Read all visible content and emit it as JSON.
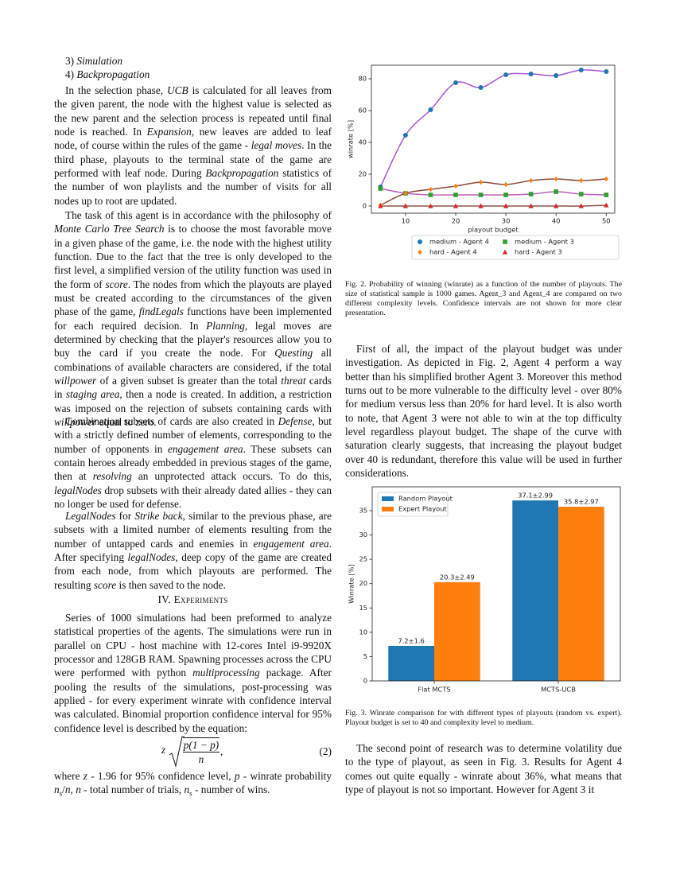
{
  "paper": {
    "left": {
      "list": [
        [
          "3) ",
          {
            "italic": "Simulation"
          }
        ],
        [
          "4) ",
          {
            "italic": "Backpropagation"
          }
        ]
      ],
      "p1": [
        "In the selection phase, ",
        {
          "italic": "UCB"
        },
        " is calculated for all leaves from the given parent, the node with the highest value is selected as the new parent and the selection process is repeated until final node is reached. In ",
        {
          "italic": "Expansion"
        },
        ", new leaves are added to leaf node, of course within the rules of the game - ",
        {
          "italic": "legal moves"
        },
        ". In the third phase, playouts to the terminal state of the game are performed with leaf node. During ",
        {
          "italic": "Backpropagation"
        },
        " statistics of the number of won playlists and the number of visits for all nodes up to root are updated."
      ],
      "p2": [
        "The task of this agent is in accordance with the philosophy of ",
        {
          "italic": "Monte Carlo Tree Search"
        },
        " is to choose the most favorable move in a given phase of the game, i.e. the node with the highest utility function. Due to the fact that the tree is only developed to the first level, a simplified version of the utility function was used in the form of ",
        {
          "italic": "score"
        },
        ". The nodes from which the playouts are played must be created according to the circumstances of the given phase of the game, ",
        {
          "italic": "findLegals"
        },
        " functions have been implemented for each required decision. In ",
        {
          "italic": "Planning"
        },
        ", legal moves are determined by checking that the player's resources allow you to buy the card if you create the node. For ",
        {
          "italic": "Questing"
        },
        " all combinations of available characters are considered, if the total ",
        {
          "italic": "willpower"
        },
        " of a given subset is greater than the total ",
        {
          "italic": "threat"
        },
        " cards in ",
        {
          "italic": "staging area"
        },
        ", then a node is created. In addition, a restriction was imposed on the rejection of subsets containing cards with ",
        {
          "italic": "willpower"
        },
        " equal to zero."
      ],
      "p3": [
        "Combination subsets of cards are also created in ",
        {
          "italic": "Defense"
        },
        ", but with a strictly defined number of elements, corresponding to the number of opponents in ",
        {
          "italic": "engagement area"
        },
        ". These subsets can contain heroes already embedded in previous stages of the game, then at ",
        {
          "italic": "resolving"
        },
        " an unprotected attack occurs. To do this, ",
        {
          "italic": "legalNodes"
        },
        " drop subsets with their already dated allies - they can no longer be used for defense."
      ],
      "p4": [
        {
          "italic": "LegalNodes"
        },
        " for ",
        {
          "italic": "Strike back"
        },
        ", similar to the previous phase, are subsets with a limited number of elements resulting from the number of untapped cards and enemies in ",
        {
          "italic": "engagement area"
        },
        ". After specifying ",
        {
          "italic": "legalNodes"
        },
        ", deep copy of the game are created from each node, from which playouts are performed. The resulting ",
        {
          "italic": "score"
        },
        " is then saved to the node."
      ],
      "heading": "IV. Experiments",
      "p5": [
        "Series of 1000 simulations had been preformed to analyze statistical properties of the agents. The simulations were run in parallel on CPU - host machine with 12-cores Intel i9-9920X processor and 128GB RAM. Spawning processes across the CPU were performed with python ",
        {
          "italic": "multiprocessing"
        },
        " package. After pooling the results of the simulations, post-processing was applied - for every experiment winrate with confidence interval was calculated. Binomial proportion confidence interval for 95% confidence level is described by the equation:"
      ],
      "equation": {
        "lhs": "z",
        "numerator": "p(1 − p)",
        "denominator": "n",
        "tail": ",",
        "number": "(2)"
      },
      "p6": [
        "where ",
        {
          "italic": "z"
        },
        " - 1.96 for 95% confidence level, ",
        {
          "italic": "p"
        },
        " - winrate probability ",
        {
          "italic": "n"
        },
        {
          "sub": "s"
        },
        "/",
        {
          "italic": "n"
        },
        ", ",
        {
          "italic": "n"
        },
        " - total number of trials, ",
        {
          "italic": "n"
        },
        {
          "sub": "s"
        },
        " - number of wins."
      ]
    },
    "right": {
      "caption2": "Fig. 2.  Probability of winning (winrate) as a function of the number of playouts. The size of statistical sample is 1000 games. Agent_3 and Agent_4 are compared on two different complexity levels. Confidence intervals are not shown for more clear presentation.",
      "p1": [
        "First of all, the impact of the playout budget was under investigation. As depicted in Fig. 2, Agent 4 perform a way better than his simplified brother Agent 3. Moreover this method turns out to be more vulnerable to the difficulty level - over 80% for medium versus less than 20% for hard level. It is also worth to note, that Agent 3 were not able to win at the top difficulty level regardless playout budget. The shape of the curve with saturation clearly suggests, that increasing the playout budget over 40 is redundant, therefore this value will be used in further considerations."
      ],
      "caption3": "Fig. 3.  Winrate comparison for with different types of playouts (random vs. expert). Playout budget is set to 40 and complexity level to medium.",
      "p2": [
        "The second point of research was to determine volatility due to the type of playout, as seen in Fig. 3. Results for Agent 4 comes out quite equally - winrate about 36%, what means that type of playout is not so important. However for Agent 3 it"
      ]
    }
  },
  "chart_data": [
    {
      "type": "line",
      "x_label": "playout budget",
      "y_label": "winrate [%]",
      "x": [
        5,
        10,
        15,
        20,
        25,
        30,
        35,
        40,
        45,
        50
      ],
      "series": [
        {
          "name": "medium - Agent 4",
          "color": "#1f77b4",
          "fit_color": "#a855d8",
          "marker": "o",
          "values": [
            12,
            44.5,
            60.5,
            77.5,
            74.5,
            82.5,
            83,
            82,
            85.5,
            84.5
          ]
        },
        {
          "name": "medium - Agent 3",
          "color": "#2ca02c",
          "fit_color": "#c060c0",
          "marker": "s",
          "values": [
            11,
            8,
            7,
            7,
            7,
            7,
            7.5,
            9,
            7.5,
            7
          ]
        },
        {
          "name": "hard - Agent 4",
          "color": "#ff7f0e",
          "fit_color": "#8c4b3b",
          "marker": "d",
          "values": [
            0.5,
            8,
            10.5,
            12.5,
            15,
            13.5,
            16,
            17,
            16,
            17
          ]
        },
        {
          "name": "hard - Agent 3",
          "color": "#d62728",
          "fit_color": "#8c564b",
          "marker": "^",
          "values": [
            0,
            0,
            0,
            0,
            0,
            0,
            0,
            0,
            0,
            0.5
          ]
        }
      ],
      "xlim": [
        3.2,
        51.7
      ],
      "xticks": [
        10,
        20,
        30,
        40,
        50
      ],
      "ylim": [
        -4.5,
        88.5
      ],
      "yticks": [
        0,
        20,
        40,
        60,
        80
      ],
      "legend": "below",
      "legend_columns": 2
    },
    {
      "type": "bar",
      "y_label": "Winrate [%]",
      "categories": [
        "Flat MCTS",
        "MCTS-UCB"
      ],
      "series": [
        {
          "name": "Random Playout",
          "color": "#1f77b4",
          "values": [
            7.2,
            37.1
          ],
          "value_labels": [
            "7.2±1.6",
            "37.1±2.99"
          ]
        },
        {
          "name": "Expert Playout",
          "color": "#ff7f0e",
          "values": [
            20.3,
            35.8
          ],
          "value_labels": [
            "20.3±2.49",
            "35.8±2.97"
          ]
        }
      ],
      "ylim": [
        0,
        39.9
      ],
      "yticks": [
        0,
        5,
        10,
        15,
        20,
        25,
        30,
        35
      ],
      "legend": "upper left"
    }
  ]
}
